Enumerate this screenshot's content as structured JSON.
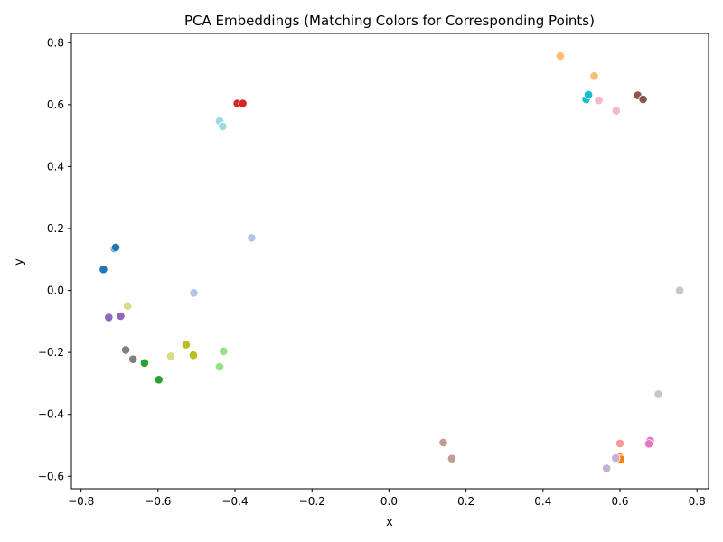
{
  "chart_data": {
    "type": "scatter",
    "title": "PCA Embeddings (Matching Colors for Corresponding Points)",
    "xlabel": "x",
    "ylabel": "y",
    "xlim": [
      -0.825,
      0.83
    ],
    "ylim": [
      -0.64,
      0.83
    ],
    "xticks": [
      -0.8,
      -0.6,
      -0.4,
      -0.2,
      0.0,
      0.2,
      0.4,
      0.6,
      0.8
    ],
    "xtick_labels": [
      "−0.8",
      "−0.6",
      "−0.4",
      "−0.2",
      "0.0",
      "0.2",
      "0.4",
      "0.6",
      "0.8"
    ],
    "yticks": [
      -0.6,
      -0.4,
      -0.2,
      0.0,
      0.2,
      0.4,
      0.6,
      0.8
    ],
    "ytick_labels": [
      "−0.6",
      "−0.4",
      "−0.2",
      "0.0",
      "0.2",
      "0.4",
      "0.6",
      "0.8"
    ],
    "grid": false,
    "points": [
      {
        "x": -0.742,
        "y": 0.068,
        "color": "#1f77b4"
      },
      {
        "x": -0.713,
        "y": 0.136,
        "color": "#1f77b4"
      },
      {
        "x": -0.71,
        "y": 0.139,
        "color": "#1f77b4"
      },
      {
        "x": -0.679,
        "y": -0.05,
        "color": "#dbdb8d"
      },
      {
        "x": -0.567,
        "y": -0.212,
        "color": "#dbdb8d"
      },
      {
        "x": -0.728,
        "y": -0.087,
        "color": "#9467bd"
      },
      {
        "x": -0.697,
        "y": -0.083,
        "color": "#9467bd"
      },
      {
        "x": -0.684,
        "y": -0.192,
        "color": "#7f7f7f"
      },
      {
        "x": -0.665,
        "y": -0.222,
        "color": "#7f7f7f"
      },
      {
        "x": -0.635,
        "y": -0.234,
        "color": "#2ca02c"
      },
      {
        "x": -0.598,
        "y": -0.288,
        "color": "#2ca02c"
      },
      {
        "x": -0.527,
        "y": -0.175,
        "color": "#bcbd22"
      },
      {
        "x": -0.508,
        "y": -0.209,
        "color": "#bcbd22"
      },
      {
        "x": -0.507,
        "y": -0.008,
        "color": "#aec7e8"
      },
      {
        "x": -0.357,
        "y": 0.17,
        "color": "#aec7e8"
      },
      {
        "x": -0.43,
        "y": -0.196,
        "color": "#98df8a"
      },
      {
        "x": -0.44,
        "y": -0.246,
        "color": "#98df8a"
      },
      {
        "x": -0.44,
        "y": 0.547,
        "color": "#9edae5"
      },
      {
        "x": -0.432,
        "y": 0.53,
        "color": "#9edae5"
      },
      {
        "x": -0.394,
        "y": 0.604,
        "color": "#d62728"
      },
      {
        "x": -0.38,
        "y": 0.604,
        "color": "#d62728"
      },
      {
        "x": 0.445,
        "y": 0.757,
        "color": "#ffbb78"
      },
      {
        "x": 0.533,
        "y": 0.692,
        "color": "#ffbb78"
      },
      {
        "x": 0.512,
        "y": 0.617,
        "color": "#17becf"
      },
      {
        "x": 0.518,
        "y": 0.632,
        "color": "#17becf"
      },
      {
        "x": 0.545,
        "y": 0.614,
        "color": "#f7b6d2"
      },
      {
        "x": 0.59,
        "y": 0.58,
        "color": "#f7b6d2"
      },
      {
        "x": 0.646,
        "y": 0.63,
        "color": "#8c564b"
      },
      {
        "x": 0.66,
        "y": 0.617,
        "color": "#8c564b"
      },
      {
        "x": 0.755,
        "y": 0.0,
        "color": "#c7c7c7"
      },
      {
        "x": 0.7,
        "y": -0.335,
        "color": "#c7c7c7"
      },
      {
        "x": 0.141,
        "y": -0.491,
        "color": "#c49c94"
      },
      {
        "x": 0.163,
        "y": -0.543,
        "color": "#c49c94"
      },
      {
        "x": 0.6,
        "y": -0.494,
        "color": "#ff9896"
      },
      {
        "x": 0.6,
        "y": -0.538,
        "color": "#ff7f0e"
      },
      {
        "x": 0.602,
        "y": -0.545,
        "color": "#ff7f0e"
      },
      {
        "x": 0.589,
        "y": -0.541,
        "color": "#c5b0d5"
      },
      {
        "x": 0.565,
        "y": -0.574,
        "color": "#c5b0d5"
      },
      {
        "x": 0.678,
        "y": -0.485,
        "color": "#e377c2"
      },
      {
        "x": 0.675,
        "y": -0.495,
        "color": "#e377c2"
      }
    ]
  }
}
